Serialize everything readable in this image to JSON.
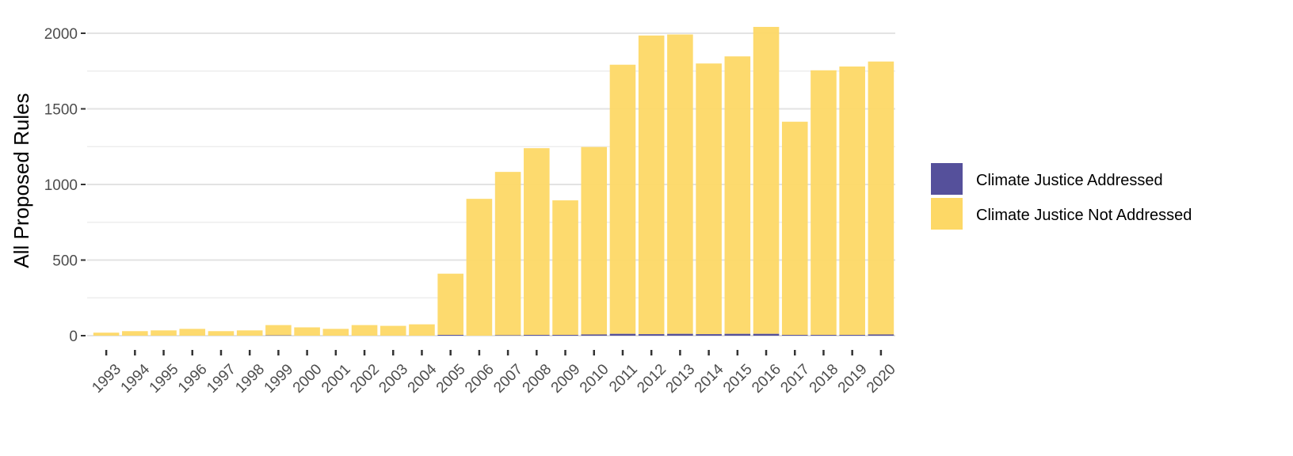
{
  "chart_data": {
    "type": "bar",
    "ylabel": "All Proposed Rules",
    "xlabel": "",
    "ylim": [
      0,
      2050
    ],
    "yticks": [
      0,
      500,
      1000,
      1500,
      2000
    ],
    "grid": true,
    "legend_position": "right",
    "categories": [
      "1993",
      "1994",
      "1995",
      "1996",
      "1997",
      "1998",
      "1999",
      "2000",
      "2001",
      "2002",
      "2003",
      "2004",
      "2005",
      "2006",
      "2007",
      "2008",
      "2009",
      "2010",
      "2011",
      "2012",
      "2013",
      "2014",
      "2015",
      "2016",
      "2017",
      "2018",
      "2019",
      "2020"
    ],
    "series": [
      {
        "name": "Climate Justice Addressed",
        "color": "#55509b",
        "values": [
          0,
          0,
          0,
          0,
          0,
          0,
          2,
          0,
          0,
          0,
          0,
          0,
          5,
          0,
          3,
          5,
          5,
          8,
          12,
          10,
          12,
          10,
          12,
          12,
          5,
          5,
          5,
          8
        ]
      },
      {
        "name": "Climate Justice Not Addressed",
        "color": "#fdd866",
        "values": [
          20,
          30,
          35,
          45,
          30,
          35,
          68,
          55,
          45,
          70,
          65,
          75,
          405,
          905,
          1080,
          1235,
          890,
          1240,
          1780,
          1975,
          1980,
          1790,
          1835,
          2030,
          1410,
          1750,
          1775,
          1805
        ]
      }
    ]
  }
}
